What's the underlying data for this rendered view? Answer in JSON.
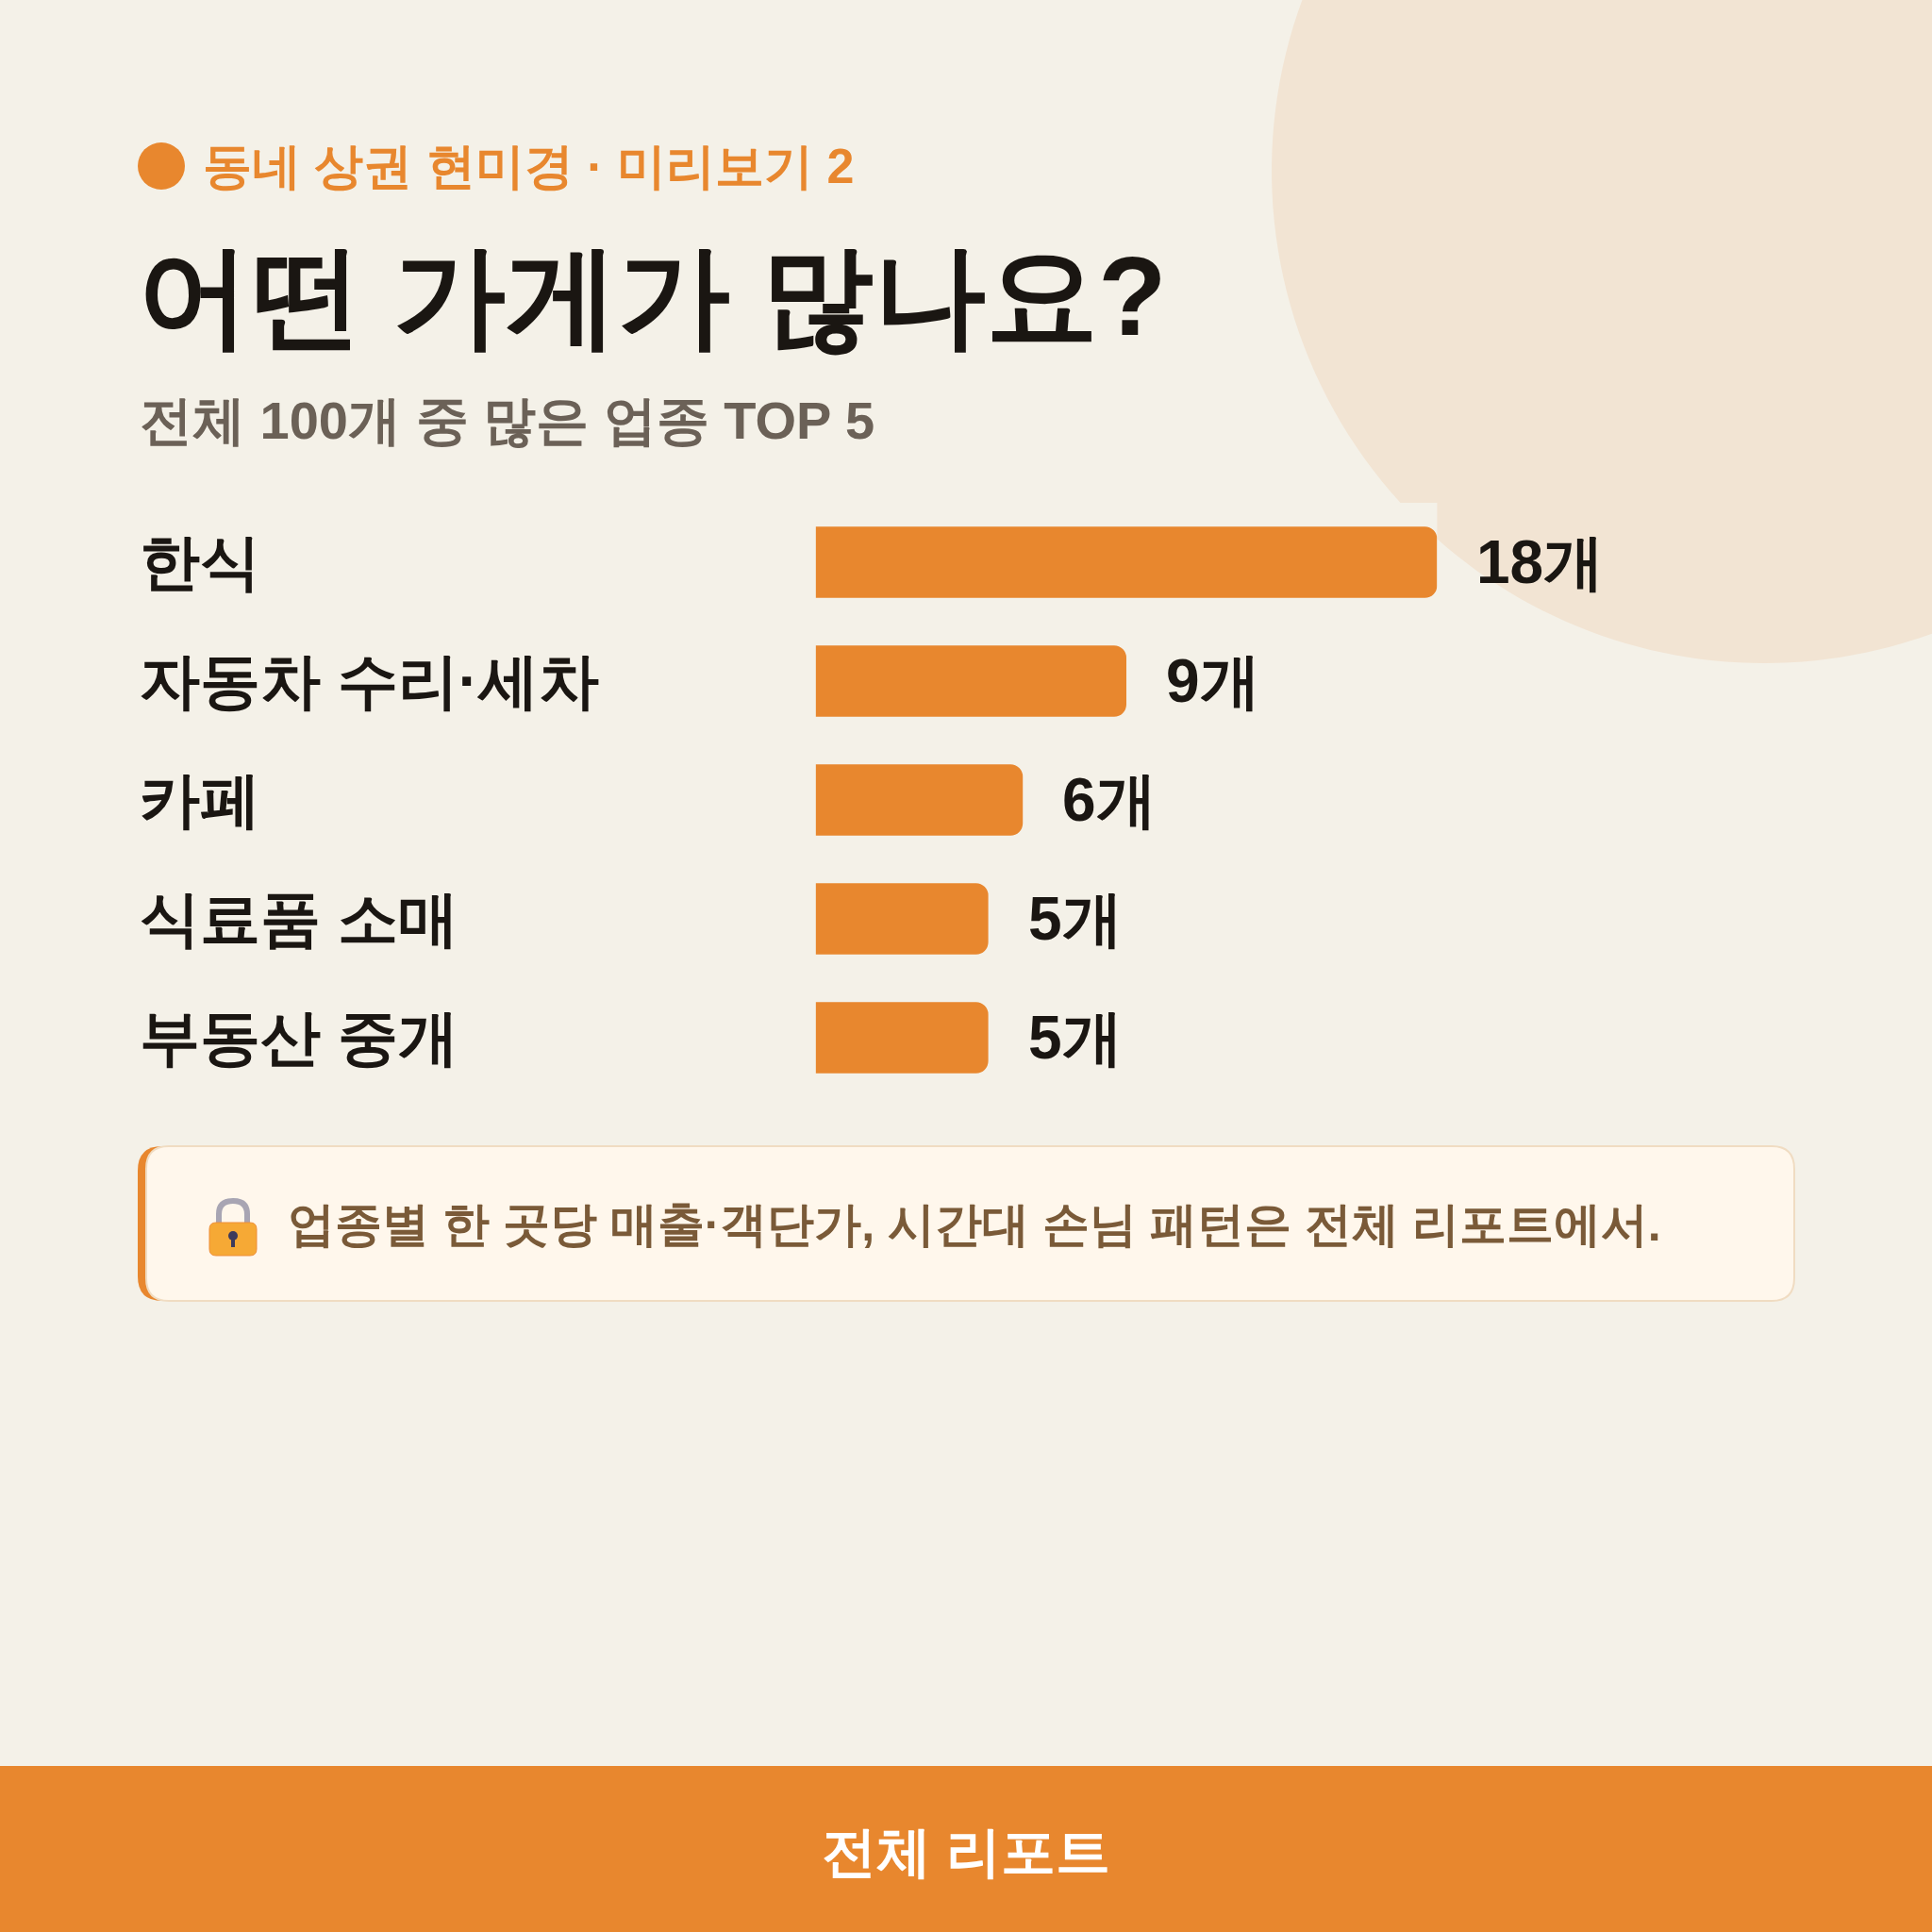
{
  "chart_data": {
    "type": "bar",
    "orientation": "horizontal",
    "title": "어떤 가게가 많나요?",
    "subtitle": "전체 100개 중 많은 업종 TOP 5",
    "categories": [
      "한식",
      "자동차 수리·세차",
      "카페",
      "식료품 소매",
      "부동산 중개"
    ],
    "values": [
      18,
      9,
      6,
      5,
      5
    ],
    "value_labels": [
      "18개",
      "9개",
      "6개",
      "5개",
      "5개"
    ],
    "color": "#e8872e",
    "tick_labels": "y",
    "grid": false,
    "legend": false,
    "annotations": [
      "동네 상권 현미경 · 미리보기 2",
      "업종별 한 곳당 매출·객단가, 시간대 손님 패턴은 전체 리포트에서.",
      "전체 리포트"
    ]
  }
}
